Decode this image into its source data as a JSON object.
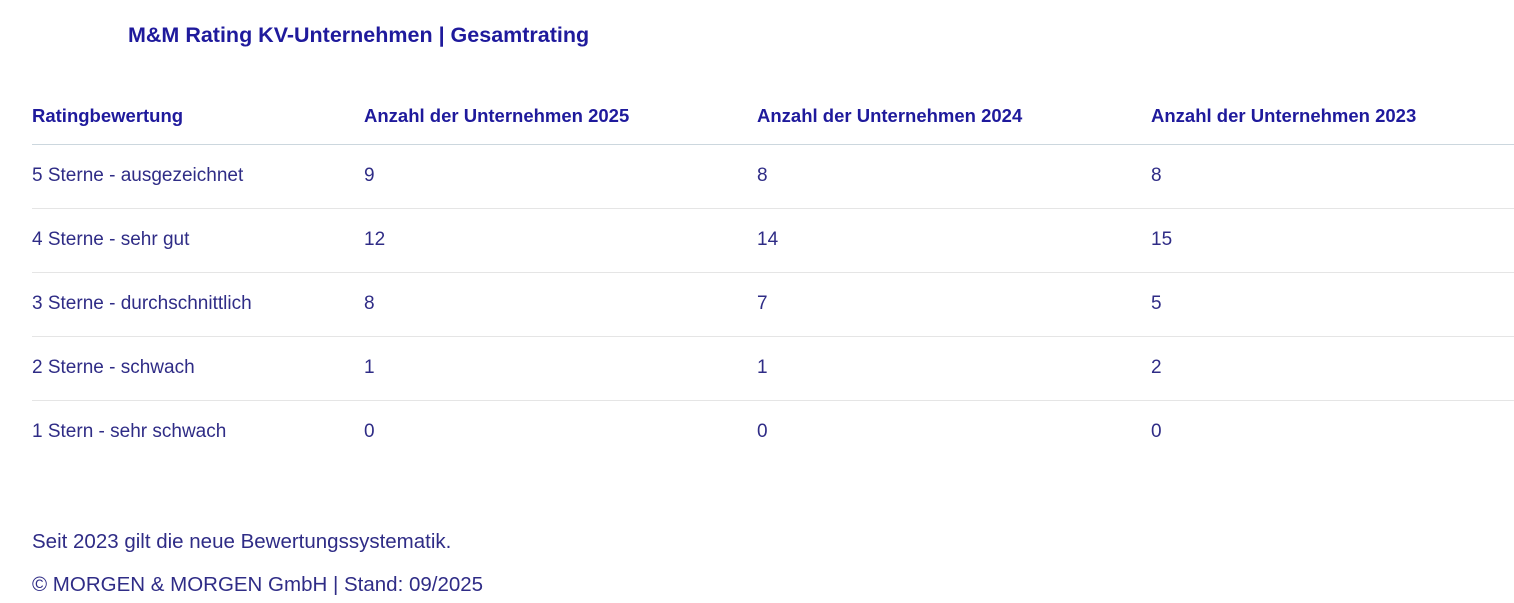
{
  "header": {
    "title": "M&M Rating KV-Unternehmen | Gesamtrating"
  },
  "chart_data": {
    "type": "table",
    "title": "M&M Rating KV-Unternehmen | Gesamtrating",
    "columns": [
      "Ratingbewertung",
      "Anzahl der Unternehmen 2025",
      "Anzahl der Unternehmen 2024",
      "Anzahl der Unternehmen 2023"
    ],
    "rows": [
      {
        "label": "5 Sterne - ausgezeichnet",
        "values": [
          9,
          8,
          8
        ]
      },
      {
        "label": "4 Sterne - sehr gut",
        "values": [
          12,
          14,
          15
        ]
      },
      {
        "label": "3 Sterne - durchschnittlich",
        "values": [
          8,
          7,
          5
        ]
      },
      {
        "label": "2 Sterne - schwach",
        "values": [
          1,
          1,
          2
        ]
      },
      {
        "label": "1 Stern - sehr schwach",
        "values": [
          0,
          0,
          0
        ]
      }
    ]
  },
  "footer": {
    "note": "Seit 2023 gilt die neue Bewertungssystematik.",
    "copyright": "© MORGEN & MORGEN GmbH | Stand: 09/2025"
  },
  "colors": {
    "heading_text": "#1f1a9c",
    "body_text": "#2f2c86",
    "header_rule": "#ccd7de",
    "row_rule": "#e5e5e5",
    "background": "#ffffff"
  }
}
